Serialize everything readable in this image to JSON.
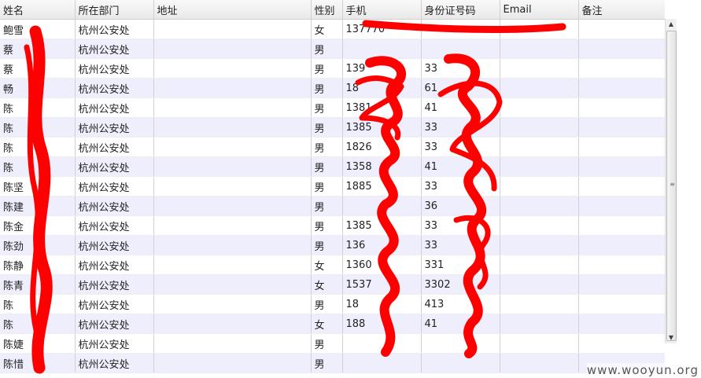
{
  "columns": [
    {
      "key": "name",
      "label": "姓名"
    },
    {
      "key": "dept",
      "label": "所在部门"
    },
    {
      "key": "addr",
      "label": "地址"
    },
    {
      "key": "gender",
      "label": "性别"
    },
    {
      "key": "phone",
      "label": "手机"
    },
    {
      "key": "idcard",
      "label": "身份证号码"
    },
    {
      "key": "email",
      "label": "Email"
    },
    {
      "key": "note",
      "label": "备注"
    }
  ],
  "rows": [
    {
      "name": "鲍雪",
      "dept": "杭州公安处",
      "addr": "",
      "gender": "女",
      "phone": "137770",
      "idcard": "",
      "email": "",
      "note": ""
    },
    {
      "name": "蔡",
      "dept": "杭州公安处",
      "addr": "",
      "gender": "男",
      "phone": "",
      "idcard": "",
      "email": "",
      "note": ""
    },
    {
      "name": "蔡",
      "dept": "杭州公安处",
      "addr": "",
      "gender": "男",
      "phone": "139",
      "idcard": "33",
      "email": "",
      "note": ""
    },
    {
      "name": "畅",
      "dept": "杭州公安处",
      "addr": "",
      "gender": "男",
      "phone": "18",
      "idcard": "61",
      "email": "",
      "note": ""
    },
    {
      "name": "陈",
      "dept": "杭州公安处",
      "addr": "",
      "gender": "男",
      "phone": "1381",
      "idcard": "41",
      "email": "",
      "note": ""
    },
    {
      "name": "陈",
      "dept": "杭州公安处",
      "addr": "",
      "gender": "男",
      "phone": "1385",
      "idcard": "33",
      "email": "",
      "note": ""
    },
    {
      "name": "陈",
      "dept": "杭州公安处",
      "addr": "",
      "gender": "男",
      "phone": "1826",
      "idcard": "33",
      "email": "",
      "note": ""
    },
    {
      "name": "陈",
      "dept": "杭州公安处",
      "addr": "",
      "gender": "男",
      "phone": "1358",
      "idcard": "41",
      "email": "",
      "note": ""
    },
    {
      "name": "陈坚",
      "dept": "杭州公安处",
      "addr": "",
      "gender": "男",
      "phone": "1885",
      "idcard": "33",
      "email": "",
      "note": ""
    },
    {
      "name": "陈建",
      "dept": "杭州公安处",
      "addr": "",
      "gender": "男",
      "phone": "",
      "idcard": "36",
      "email": "",
      "note": ""
    },
    {
      "name": "陈金",
      "dept": "杭州公安处",
      "addr": "",
      "gender": "男",
      "phone": "1385",
      "idcard": "33",
      "email": "",
      "note": ""
    },
    {
      "name": "陈劲",
      "dept": "杭州公安处",
      "addr": "",
      "gender": "男",
      "phone": "136",
      "idcard": "33",
      "email": "",
      "note": ""
    },
    {
      "name": "陈静",
      "dept": "杭州公安处",
      "addr": "",
      "gender": "女",
      "phone": "1360",
      "idcard": "331",
      "email": "",
      "note": ""
    },
    {
      "name": "陈青",
      "dept": "杭州公安处",
      "addr": "",
      "gender": "女",
      "phone": "1537",
      "idcard": "3302",
      "email": "",
      "note": ""
    },
    {
      "name": "陈",
      "dept": "杭州公安处",
      "addr": "",
      "gender": "男",
      "phone": "18",
      "idcard": "413",
      "email": "",
      "note": ""
    },
    {
      "name": "陈",
      "dept": "杭州公安处",
      "addr": "",
      "gender": "女",
      "phone": "188",
      "idcard": "41",
      "email": "",
      "note": ""
    },
    {
      "name": "陈婕",
      "dept": "杭州公安处",
      "addr": "",
      "gender": "男",
      "phone": "",
      "idcard": "",
      "email": "",
      "note": ""
    },
    {
      "name": "陈惜",
      "dept": "杭州公安处",
      "addr": "",
      "gender": "男",
      "phone": "",
      "idcard": "",
      "email": "",
      "note": ""
    }
  ],
  "watermark": "www.wooyun.org",
  "scrollbar": {
    "up": "▲",
    "down": "▼",
    "grip": "≡"
  },
  "colors": {
    "scribble": "#ff0000",
    "row_alt": "#eeeefc",
    "header": "#ececec"
  }
}
